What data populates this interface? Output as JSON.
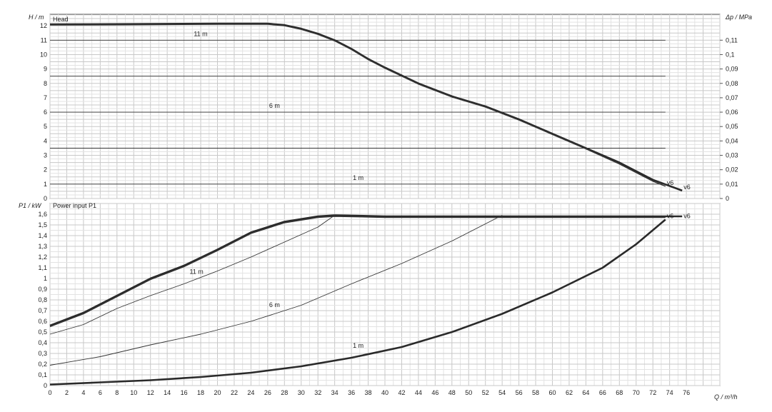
{
  "chart_data": [
    {
      "type": "line",
      "title": "Head",
      "ylabel": "H / m",
      "ylabel2": "Δp / MPa",
      "xlim": [
        0,
        80
      ],
      "ylim": [
        0,
        12.8
      ],
      "y2lim": [
        0,
        0.128
      ],
      "yticks": [
        0,
        1,
        2,
        3,
        4,
        5,
        6,
        7,
        8,
        9,
        10,
        11,
        12
      ],
      "yticklabels": [
        "0",
        "1",
        "2",
        "3",
        "4",
        "5",
        "6",
        "7",
        "8",
        "9",
        "10",
        "11",
        "12"
      ],
      "y2ticks": [
        0,
        0.01,
        0.02,
        0.03,
        0.04,
        0.05,
        0.06,
        0.07,
        0.08,
        0.09,
        0.1,
        0.11
      ],
      "y2ticklabels": [
        "0",
        "0,01",
        "0,02",
        "0,03",
        "0,04",
        "0,05",
        "0,06",
        "0,07",
        "0,08",
        "0,09",
        "0,1",
        "0,11"
      ],
      "grid": true,
      "series": [
        {
          "name": "v6",
          "style": "bold",
          "label_at": [
            75.5,
            0.55
          ],
          "x": [
            0,
            10,
            20,
            26,
            28,
            30,
            32,
            34,
            36,
            38,
            40,
            44,
            48,
            52,
            56,
            60,
            64,
            68,
            72,
            75.5
          ],
          "y": [
            12.1,
            12.12,
            12.15,
            12.15,
            12.05,
            11.8,
            11.45,
            11.0,
            10.4,
            9.7,
            9.1,
            8.0,
            7.1,
            6.4,
            5.5,
            4.5,
            3.5,
            2.5,
            1.3,
            0.55
          ]
        },
        {
          "name": "v6",
          "style": "normal",
          "label_at": [
            73.5,
            0.85
          ],
          "x": [
            0,
            10,
            20,
            26,
            28,
            30,
            32,
            34,
            36,
            38,
            40,
            44,
            48,
            52,
            56,
            60,
            64,
            68,
            72,
            73.5
          ],
          "y": [
            12.05,
            12.07,
            12.1,
            12.1,
            12.0,
            11.75,
            11.4,
            10.95,
            10.35,
            9.65,
            9.05,
            7.95,
            7.05,
            6.35,
            5.45,
            4.45,
            3.45,
            2.4,
            1.2,
            0.85
          ]
        },
        {
          "name": "11 m",
          "style": "thin",
          "label_at": [
            17,
            11.2
          ],
          "x": [
            0,
            73.5
          ],
          "y": [
            11,
            11
          ]
        },
        {
          "name": "6 m",
          "style": "thin",
          "label_at": [
            26,
            6.2
          ],
          "x": [
            0,
            73.5
          ],
          "y": [
            6,
            6
          ]
        },
        {
          "name": "1 m",
          "style": "thin",
          "label_at": [
            36,
            1.2
          ],
          "x": [
            0,
            73.5
          ],
          "y": [
            1,
            1
          ]
        },
        {
          "name": "",
          "style": "thin",
          "x": [
            0,
            73.5
          ],
          "y": [
            8.5,
            8.5
          ]
        },
        {
          "name": "",
          "style": "thin",
          "x": [
            0,
            73.5
          ],
          "y": [
            3.5,
            3.5
          ]
        }
      ],
      "annotations": [
        "11 m",
        "6 m",
        "1 m",
        "v6",
        "v6"
      ]
    },
    {
      "type": "line",
      "title": "Power input  P1",
      "ylabel": "P1 / kW",
      "xlabel": "Q / m³/h",
      "xlim": [
        0,
        80
      ],
      "ylim": [
        0,
        1.7
      ],
      "xticks": [
        0,
        2,
        4,
        6,
        8,
        10,
        12,
        14,
        16,
        18,
        20,
        22,
        24,
        26,
        28,
        30,
        32,
        34,
        36,
        38,
        40,
        42,
        44,
        46,
        48,
        50,
        52,
        54,
        56,
        58,
        60,
        62,
        64,
        66,
        68,
        70,
        72,
        74,
        76
      ],
      "xticklabels": [
        "0",
        "2",
        "4",
        "6",
        "8",
        "10",
        "12",
        "14",
        "16",
        "18",
        "20",
        "22",
        "24",
        "26",
        "28",
        "30",
        "32",
        "34",
        "36",
        "38",
        "40",
        "42",
        "44",
        "46",
        "48",
        "50",
        "52",
        "54",
        "56",
        "58",
        "60",
        "62",
        "64",
        "66",
        "68",
        "70",
        "72",
        "74",
        "76"
      ],
      "yticks": [
        0,
        0.1,
        0.2,
        0.3,
        0.4,
        0.5,
        0.6,
        0.7,
        0.8,
        0.9,
        1,
        1.1,
        1.2,
        1.3,
        1.4,
        1.5,
        1.6
      ],
      "yticklabels": [
        "0",
        "0,1",
        "0,2",
        "0,3",
        "0,4",
        "0,5",
        "0,6",
        "0,7",
        "0,8",
        "0,9",
        "1",
        "1,1",
        "1,2",
        "1,3",
        "1,4",
        "1,5",
        "1,6"
      ],
      "grid": true,
      "series": [
        {
          "name": "v6",
          "style": "bold",
          "label_at": [
            75.5,
            1.55
          ],
          "x": [
            0,
            4,
            8,
            12,
            16,
            20,
            24,
            28,
            32,
            34,
            40,
            50,
            60,
            70,
            75.5
          ],
          "y": [
            0.56,
            0.68,
            0.84,
            1.0,
            1.12,
            1.27,
            1.43,
            1.53,
            1.58,
            1.59,
            1.58,
            1.58,
            1.58,
            1.58,
            1.58
          ]
        },
        {
          "name": "v6",
          "style": "normal",
          "label_at": [
            73.5,
            1.55
          ],
          "x": [
            0,
            4,
            8,
            12,
            16,
            20,
            24,
            28,
            32,
            34,
            40,
            50,
            60,
            70,
            73.5
          ],
          "y": [
            0.55,
            0.67,
            0.83,
            0.99,
            1.11,
            1.26,
            1.42,
            1.52,
            1.57,
            1.58,
            1.57,
            1.57,
            1.57,
            1.57,
            1.57
          ]
        },
        {
          "name": "11 m",
          "style": "thin",
          "label_at": [
            16.5,
            1.03
          ],
          "x": [
            0,
            4,
            8,
            12,
            16,
            20,
            24,
            28,
            32,
            34
          ],
          "y": [
            0.48,
            0.57,
            0.72,
            0.84,
            0.95,
            1.07,
            1.2,
            1.34,
            1.48,
            1.59
          ]
        },
        {
          "name": "6 m",
          "style": "thin",
          "label_at": [
            26,
            0.72
          ],
          "x": [
            0,
            6,
            12,
            18,
            24,
            30,
            36,
            42,
            48,
            54
          ],
          "y": [
            0.19,
            0.27,
            0.38,
            0.48,
            0.6,
            0.75,
            0.95,
            1.14,
            1.35,
            1.59
          ]
        },
        {
          "name": "1 m",
          "style": "bold",
          "label_at": [
            36,
            0.34
          ],
          "x": [
            0,
            6,
            12,
            18,
            24,
            30,
            36,
            42,
            48,
            54,
            60,
            66,
            70,
            73.5
          ],
          "y": [
            0.01,
            0.03,
            0.05,
            0.08,
            0.12,
            0.18,
            0.26,
            0.36,
            0.5,
            0.67,
            0.87,
            1.1,
            1.32,
            1.55
          ]
        }
      ],
      "annotations": [
        "11 m",
        "6 m",
        "1 m",
        "v6",
        "v6"
      ]
    }
  ]
}
